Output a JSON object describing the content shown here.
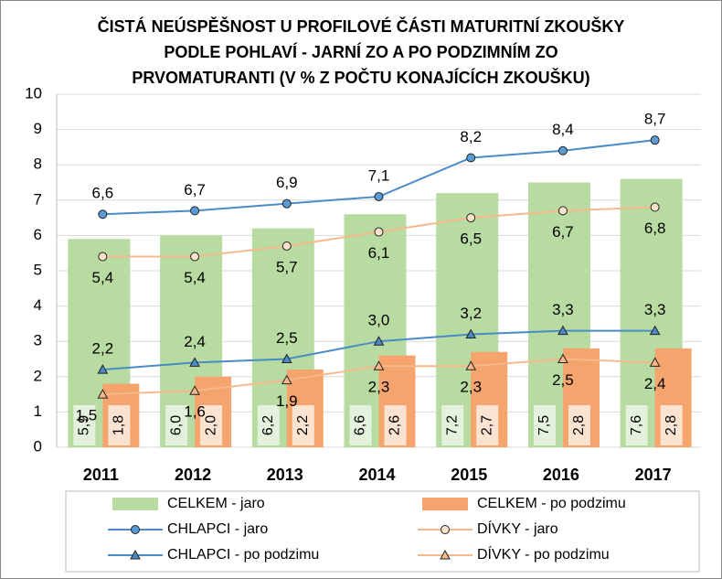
{
  "chart_data": {
    "type": "bar",
    "title": [
      "ČISTÁ NEÚSPĚŠNOST U PROFILOVÉ ČÁSTI MATURITNÍ ZKOUŠKY",
      "PODLE POHLAVÍ - JARNÍ ZO A PO PODZIMNÍM ZO",
      "PRVOMATURANTI (V % Z POČTU KONAJÍCÍCH ZKOUŠKU)"
    ],
    "categories": [
      "2011",
      "2012",
      "2013",
      "2014",
      "2015",
      "2016",
      "2017"
    ],
    "ylim": [
      0,
      10
    ],
    "yticks": [
      0,
      1,
      2,
      3,
      4,
      5,
      6,
      7,
      8,
      9,
      10
    ],
    "grid": true,
    "series": [
      {
        "name": "CELKEM - jaro",
        "type": "bar",
        "color": "#b7dba1",
        "values": [
          5.9,
          6.0,
          6.2,
          6.6,
          7.2,
          7.5,
          7.6
        ],
        "value_labels": [
          "5,9",
          "6,0",
          "6,2",
          "6,6",
          "7,2",
          "7,5",
          "7,6"
        ]
      },
      {
        "name": "CELKEM - po podzimu",
        "type": "bar",
        "color": "#f4a46c",
        "values": [
          1.8,
          2.0,
          2.2,
          2.6,
          2.7,
          2.8,
          2.8
        ],
        "value_labels": [
          "1,8",
          "2,0",
          "2,2",
          "2,6",
          "2,7",
          "2,8",
          "2,8"
        ]
      },
      {
        "name": "CHLAPCI - jaro",
        "type": "line",
        "marker": "circle",
        "color": "#4a8bc8",
        "values": [
          6.6,
          6.7,
          6.9,
          7.1,
          8.2,
          8.4,
          8.7
        ],
        "value_labels": [
          "6,6",
          "6,7",
          "6,9",
          "7,1",
          "8,2",
          "8,4",
          "8,7"
        ]
      },
      {
        "name": "DÍVKY - jaro",
        "type": "line",
        "marker": "circle",
        "color": "#f7b98c",
        "values": [
          5.4,
          5.4,
          5.7,
          6.1,
          6.5,
          6.7,
          6.8
        ],
        "value_labels": [
          "5,4",
          "5,4",
          "5,7",
          "6,1",
          "6,5",
          "6,7",
          "6,8"
        ]
      },
      {
        "name": "CHLAPCI - po podzimu",
        "type": "line",
        "marker": "triangle",
        "color": "#4a8bc8",
        "values": [
          2.2,
          2.4,
          2.5,
          3.0,
          3.2,
          3.3,
          3.3
        ],
        "value_labels": [
          "2,2",
          "2,4",
          "2,5",
          "3,0",
          "3,2",
          "3,3",
          "3,3"
        ]
      },
      {
        "name": "DÍVKY - po podzimu",
        "type": "line",
        "marker": "triangle",
        "color": "#f7b98c",
        "values": [
          1.5,
          1.6,
          1.9,
          2.3,
          2.3,
          2.5,
          2.4
        ],
        "value_labels": [
          "1,5",
          "1,6",
          "1,9",
          "2,3",
          "2,3",
          "2,5",
          "2,4"
        ]
      }
    ]
  }
}
